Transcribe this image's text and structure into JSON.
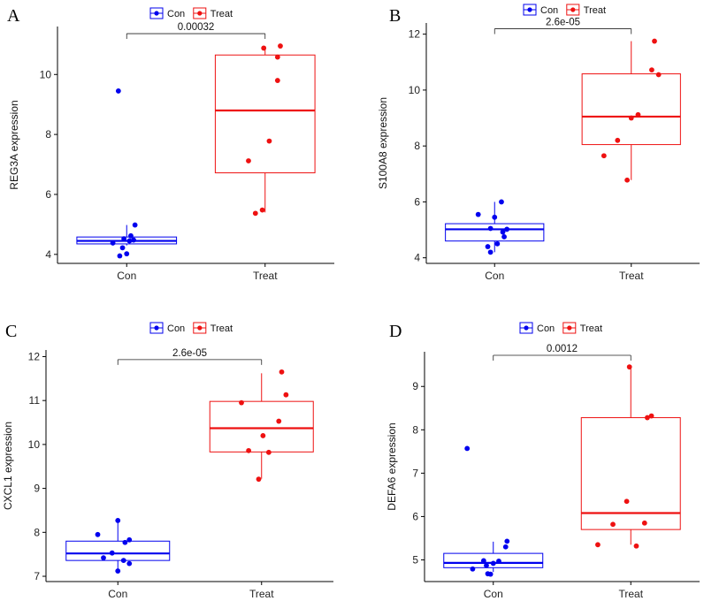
{
  "chart_data": [
    {
      "type": "box",
      "panel": "A",
      "ylabel": "REG3A expression",
      "categories": [
        "Con",
        "Treat"
      ],
      "legend": [
        {
          "name": "Con",
          "color": "#0000ee"
        },
        {
          "name": "Treat",
          "color": "#ee1111"
        }
      ],
      "ylim": [
        3.7,
        11.6
      ],
      "yticks": [
        4,
        6,
        8,
        10
      ],
      "pvalue": "0.00032",
      "series": [
        {
          "name": "Con",
          "color": "#0000ee",
          "box": {
            "whisker_low": 4.3,
            "q1": 4.35,
            "median": 4.45,
            "q3": 4.58,
            "whisker_high": 4.98
          },
          "points": [
            [
              -0.06,
              9.45
            ],
            [
              0.06,
              4.98
            ],
            [
              0.03,
              4.62
            ],
            [
              0.05,
              4.48
            ],
            [
              0.02,
              4.45
            ],
            [
              -0.02,
              4.52
            ],
            [
              -0.1,
              4.38
            ],
            [
              -0.03,
              4.22
            ],
            [
              0.0,
              4.02
            ],
            [
              -0.05,
              3.95
            ]
          ]
        },
        {
          "name": "Treat",
          "color": "#ee1111",
          "box": {
            "whisker_low": 5.4,
            "q1": 6.72,
            "median": 8.8,
            "q3": 10.65,
            "whisker_high": 10.95
          },
          "points": [
            [
              -0.01,
              10.88
            ],
            [
              0.11,
              10.95
            ],
            [
              0.09,
              10.58
            ],
            [
              0.09,
              9.8
            ],
            [
              0.03,
              7.78
            ],
            [
              -0.12,
              7.12
            ],
            [
              -0.02,
              5.48
            ],
            [
              -0.07,
              5.37
            ]
          ]
        }
      ]
    },
    {
      "type": "box",
      "panel": "B",
      "ylabel": "S100A8 expression",
      "categories": [
        "Con",
        "Treat"
      ],
      "legend": [
        {
          "name": "Con",
          "color": "#0000ee"
        },
        {
          "name": "Treat",
          "color": "#ee1111"
        }
      ],
      "ylim": [
        3.8,
        12.4
      ],
      "yticks": [
        4,
        6,
        8,
        10,
        12
      ],
      "pvalue": "2.6e-05",
      "series": [
        {
          "name": "Con",
          "color": "#0000ee",
          "box": {
            "whisker_low": 4.2,
            "q1": 4.6,
            "median": 5.02,
            "q3": 5.22,
            "whisker_high": 6.0
          },
          "points": [
            [
              0.05,
              6.0
            ],
            [
              -0.12,
              5.55
            ],
            [
              0.0,
              5.45
            ],
            [
              -0.03,
              5.05
            ],
            [
              0.09,
              5.02
            ],
            [
              0.06,
              4.92
            ],
            [
              0.07,
              4.75
            ],
            [
              0.02,
              4.5
            ],
            [
              -0.05,
              4.4
            ],
            [
              -0.03,
              4.2
            ]
          ]
        },
        {
          "name": "Treat",
          "color": "#ee1111",
          "box": {
            "whisker_low": 6.78,
            "q1": 8.05,
            "median": 9.05,
            "q3": 10.58,
            "whisker_high": 11.75
          },
          "points": [
            [
              0.17,
              11.75
            ],
            [
              0.15,
              10.72
            ],
            [
              0.2,
              10.55
            ],
            [
              0.05,
              9.12
            ],
            [
              0.0,
              9.0
            ],
            [
              -0.1,
              8.2
            ],
            [
              -0.2,
              7.65
            ],
            [
              -0.03,
              6.78
            ]
          ]
        }
      ]
    },
    {
      "type": "box",
      "panel": "C",
      "ylabel": "CXCL1 expression",
      "categories": [
        "Con",
        "Treat"
      ],
      "legend": [
        {
          "name": "Con",
          "color": "#0000ee"
        },
        {
          "name": "Treat",
          "color": "#ee1111"
        }
      ],
      "ylim": [
        6.88,
        12.15
      ],
      "yticks": [
        7,
        8,
        9,
        10,
        11,
        12
      ],
      "pvalue": "2.6e-05",
      "series": [
        {
          "name": "Con",
          "color": "#0000ee",
          "box": {
            "whisker_low": 7.12,
            "q1": 7.36,
            "median": 7.52,
            "q3": 7.8,
            "whisker_high": 8.27
          },
          "points": [
            [
              0.0,
              8.27
            ],
            [
              -0.14,
              7.95
            ],
            [
              0.08,
              7.83
            ],
            [
              0.05,
              7.77
            ],
            [
              -0.04,
              7.53
            ],
            [
              -0.1,
              7.42
            ],
            [
              0.04,
              7.36
            ],
            [
              0.08,
              7.29
            ],
            [
              0.0,
              7.12
            ]
          ]
        },
        {
          "name": "Treat",
          "color": "#ee1111",
          "box": {
            "whisker_low": 9.22,
            "q1": 9.83,
            "median": 10.37,
            "q3": 10.98,
            "whisker_high": 11.62
          },
          "points": [
            [
              0.14,
              11.65
            ],
            [
              0.17,
              11.13
            ],
            [
              -0.14,
              10.95
            ],
            [
              0.12,
              10.53
            ],
            [
              0.01,
              10.2
            ],
            [
              -0.09,
              9.86
            ],
            [
              0.05,
              9.82
            ],
            [
              -0.02,
              9.21
            ]
          ]
        }
      ]
    },
    {
      "type": "box",
      "panel": "D",
      "ylabel": "DEFA6 expression",
      "categories": [
        "Con",
        "Treat"
      ],
      "legend": [
        {
          "name": "Con",
          "color": "#0000ee"
        },
        {
          "name": "Treat",
          "color": "#ee1111"
        }
      ],
      "ylim": [
        4.5,
        9.8
      ],
      "yticks": [
        5,
        6,
        7,
        8,
        9
      ],
      "pvalue": "0.0012",
      "series": [
        {
          "name": "Con",
          "color": "#0000ee",
          "box": {
            "whisker_low": 4.72,
            "q1": 4.82,
            "median": 4.93,
            "q3": 5.15,
            "whisker_high": 5.42
          },
          "points": [
            [
              -0.19,
              7.57
            ],
            [
              0.1,
              5.43
            ],
            [
              0.09,
              5.3
            ],
            [
              -0.07,
              4.98
            ],
            [
              0.04,
              4.97
            ],
            [
              0.0,
              4.92
            ],
            [
              -0.05,
              4.87
            ],
            [
              -0.15,
              4.79
            ],
            [
              -0.04,
              4.68
            ],
            [
              -0.02,
              4.67
            ]
          ]
        },
        {
          "name": "Treat",
          "color": "#ee1111",
          "box": {
            "whisker_low": 5.35,
            "q1": 5.7,
            "median": 6.08,
            "q3": 8.28,
            "whisker_high": 9.45
          },
          "points": [
            [
              -0.01,
              9.45
            ],
            [
              0.15,
              8.32
            ],
            [
              0.12,
              8.28
            ],
            [
              -0.03,
              6.35
            ],
            [
              0.1,
              5.85
            ],
            [
              -0.13,
              5.82
            ],
            [
              -0.24,
              5.35
            ],
            [
              0.04,
              5.32
            ]
          ]
        }
      ]
    }
  ]
}
